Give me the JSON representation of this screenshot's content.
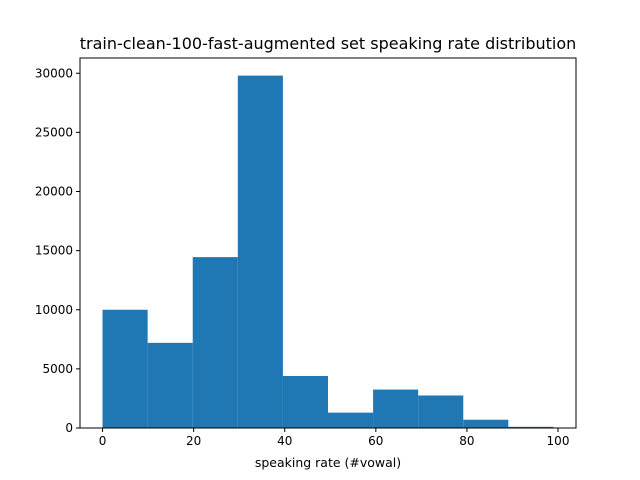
{
  "chart_data": {
    "type": "bar",
    "title": "train-clean-100-fast-augmented set speaking rate distribution",
    "xlabel": "speaking rate (#vowal)",
    "ylabel": "",
    "bin_edges": [
      0,
      9.9,
      19.8,
      29.7,
      39.6,
      49.5,
      59.4,
      69.3,
      79.2,
      89.1,
      99
    ],
    "values": [
      10000,
      7200,
      14450,
      29800,
      4400,
      1300,
      3250,
      2750,
      700,
      100
    ],
    "xlim": [
      -4.95,
      103.95
    ],
    "ylim": [
      0,
      31290
    ],
    "xticks": [
      0,
      20,
      40,
      60,
      80,
      100
    ],
    "yticks": [
      0,
      5000,
      10000,
      15000,
      20000,
      25000,
      30000
    ],
    "bar_color": "#1f77b4",
    "grid": false
  }
}
